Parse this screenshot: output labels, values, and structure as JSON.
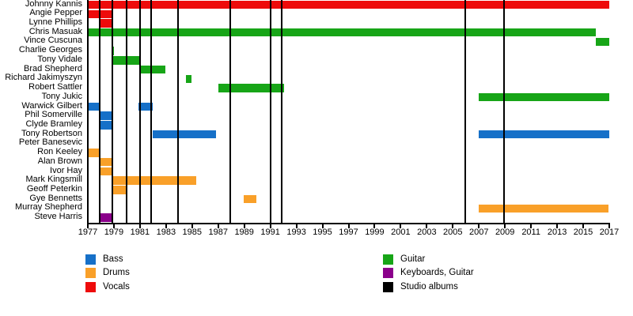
{
  "chart_data": {
    "type": "gantt",
    "description": "Band members timeline with studio album release markers",
    "x_axis": {
      "min": 1977,
      "max": 2017,
      "tick_interval": 2,
      "tick_labels": [
        "1977",
        "1979",
        "1981",
        "1983",
        "1985",
        "1987",
        "1989",
        "1991",
        "1993",
        "1995",
        "1997",
        "1999",
        "2001",
        "2003",
        "2005",
        "2007",
        "2009",
        "2011",
        "2013",
        "2015",
        "2017"
      ]
    },
    "colors": {
      "bass": "#1670C8",
      "drums": "#F9A029",
      "vocals": "#EE0B0B",
      "guitar": "#17A517",
      "keyboards_guitar": "#8B008B",
      "albums": "#000000"
    },
    "legend": {
      "columns": [
        [
          {
            "label": "Bass",
            "role": "bass"
          },
          {
            "label": "Drums",
            "role": "drums"
          },
          {
            "label": "Vocals",
            "role": "vocals"
          }
        ],
        [
          {
            "label": "Guitar",
            "role": "guitar"
          },
          {
            "label": "Keyboards, Guitar",
            "role": "keyboards_guitar"
          },
          {
            "label": "Studio albums",
            "role": "albums"
          }
        ]
      ]
    },
    "members": [
      {
        "name": "Johnny Kannis",
        "role": "vocals",
        "bars": [
          [
            1977.05,
            2017.0
          ]
        ]
      },
      {
        "name": "Angie Pepper",
        "role": "vocals",
        "bars": [
          [
            1977.05,
            1978.9
          ]
        ]
      },
      {
        "name": "Lynne Phillips",
        "role": "vocals",
        "bars": [
          [
            1977.9,
            1978.9
          ]
        ]
      },
      {
        "name": "Chris Masuak",
        "role": "guitar",
        "bars": [
          [
            1977.05,
            2015.95
          ]
        ]
      },
      {
        "name": "Vince Cuscuna",
        "role": "guitar",
        "bars": [
          [
            2015.95,
            2017.0
          ]
        ]
      },
      {
        "name": "Charlie Georges",
        "role": "guitar",
        "bars": [
          [
            1978.8,
            1979.0
          ]
        ]
      },
      {
        "name": "Tony Vidale",
        "role": "guitar",
        "bars": [
          [
            1978.95,
            1980.95
          ]
        ]
      },
      {
        "name": "Brad Shepherd",
        "role": "guitar",
        "bars": [
          [
            1980.95,
            1982.95
          ]
        ]
      },
      {
        "name": "Richard Jakimyszyn",
        "role": "guitar",
        "bars": [
          [
            1984.55,
            1984.95
          ]
        ]
      },
      {
        "name": "Robert Sattler",
        "role": "guitar",
        "bars": [
          [
            1987.0,
            1992.05
          ]
        ]
      },
      {
        "name": "Tony Jukic",
        "role": "guitar",
        "bars": [
          [
            2007.0,
            2017.0
          ]
        ]
      },
      {
        "name": "Warwick Gilbert",
        "role": "bass",
        "bars": [
          [
            1977.0,
            1977.9
          ],
          [
            1980.9,
            1981.95
          ]
        ]
      },
      {
        "name": "Phil Somerville",
        "role": "bass",
        "bars": [
          [
            1977.9,
            1978.95
          ]
        ]
      },
      {
        "name": "Clyde Bramley",
        "role": "bass",
        "bars": [
          [
            1977.9,
            1978.95
          ]
        ]
      },
      {
        "name": "Tony Robertson",
        "role": "bass",
        "bars": [
          [
            1981.95,
            1986.85
          ],
          [
            2007.0,
            2017.0
          ]
        ]
      },
      {
        "name": "Peter Banesevic",
        "role": "drums",
        "bars": []
      },
      {
        "name": "Ron Keeley",
        "role": "drums",
        "bars": [
          [
            1977.0,
            1977.9
          ]
        ]
      },
      {
        "name": "Alan Brown",
        "role": "drums",
        "bars": [
          [
            1977.95,
            1978.9
          ]
        ]
      },
      {
        "name": "Ivor Hay",
        "role": "drums",
        "bars": [
          [
            1977.95,
            1978.9
          ]
        ]
      },
      {
        "name": "Mark Kingsmill",
        "role": "drums",
        "bars": [
          [
            1978.9,
            1985.3
          ]
        ]
      },
      {
        "name": "Geoff Peterkin",
        "role": "drums",
        "bars": [
          [
            1978.9,
            1979.95
          ]
        ]
      },
      {
        "name": "Gye Bennetts",
        "role": "drums",
        "bars": [
          [
            1988.93,
            1989.9
          ]
        ]
      },
      {
        "name": "Murray Shepherd",
        "role": "drums",
        "bars": [
          [
            2007.0,
            2016.95
          ]
        ]
      },
      {
        "name": "Steve Harris",
        "role": "keyboards_guitar",
        "bars": [
          [
            1977.87,
            1978.95
          ]
        ]
      }
    ],
    "album_lines": [
      1977.9,
      1978.9,
      1980.0,
      1981.0,
      1981.85,
      1983.9,
      1987.9,
      1991.0,
      1991.9,
      2005.95,
      2008.95
    ]
  }
}
